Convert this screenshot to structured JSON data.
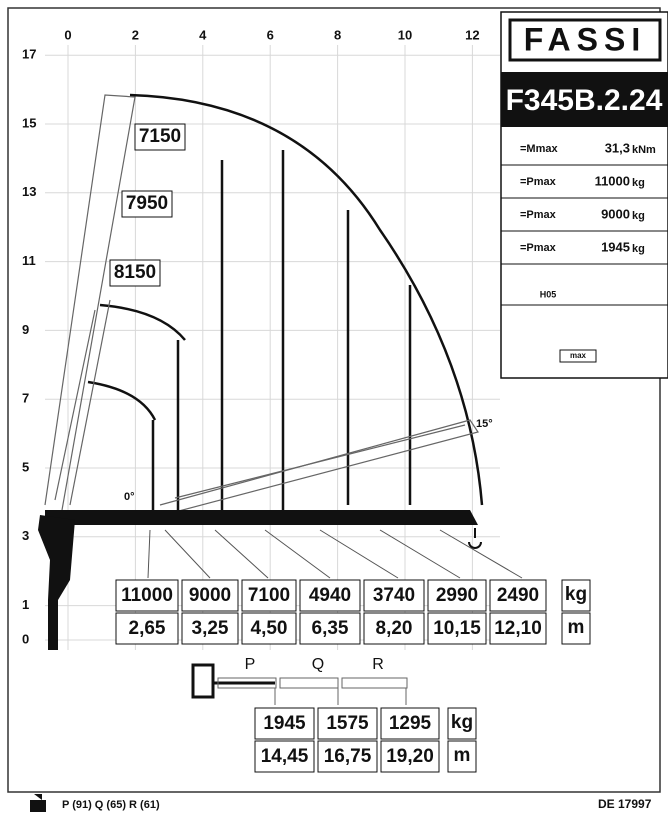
{
  "brand": "FASSI",
  "model": "F345B.2.24",
  "specs": [
    {
      "label": "=Mmax",
      "value": "31,3",
      "unit": "kNm"
    },
    {
      "label": "=Pmax",
      "value": "11000",
      "unit": "kg"
    },
    {
      "label": "=Pmax",
      "value": "9000",
      "unit": "kg"
    },
    {
      "label": "=Pmax",
      "value": "1945",
      "unit": "kg"
    }
  ],
  "icons": {
    "hose": "H05",
    "max": "max"
  },
  "x_axis": [
    0,
    2,
    4,
    6,
    8,
    10,
    12
  ],
  "y_axis": [
    17,
    15,
    13,
    11,
    9,
    7,
    5,
    3,
    1,
    0
  ],
  "boom_loads": [
    "7150",
    "7950",
    "8150"
  ],
  "angles": [
    "0°",
    "15°"
  ],
  "main_table": {
    "kg": [
      "11000",
      "9000",
      "7100",
      "4940",
      "3740",
      "2990",
      "2490"
    ],
    "m": [
      "2,65",
      "3,25",
      "4,50",
      "6,35",
      "8,20",
      "10,15",
      "12,10"
    ],
    "units": [
      "kg",
      "m"
    ]
  },
  "extension_table": {
    "labels": [
      "P",
      "Q",
      "R"
    ],
    "kg": [
      "1945",
      "1575",
      "1295"
    ],
    "m": [
      "14,45",
      "16,75",
      "19,20"
    ],
    "units": [
      "kg",
      "m"
    ]
  },
  "footer": {
    "extensions": "P (91)  Q (65)  R (61)",
    "code": "DE 17997"
  }
}
